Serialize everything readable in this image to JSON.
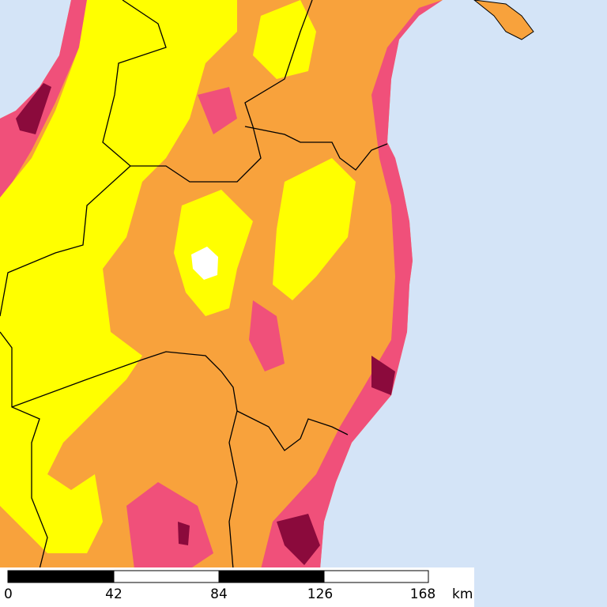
{
  "scale_bar": {
    "labels": [
      0,
      42,
      84,
      126,
      168
    ],
    "unit": "km"
  }
}
